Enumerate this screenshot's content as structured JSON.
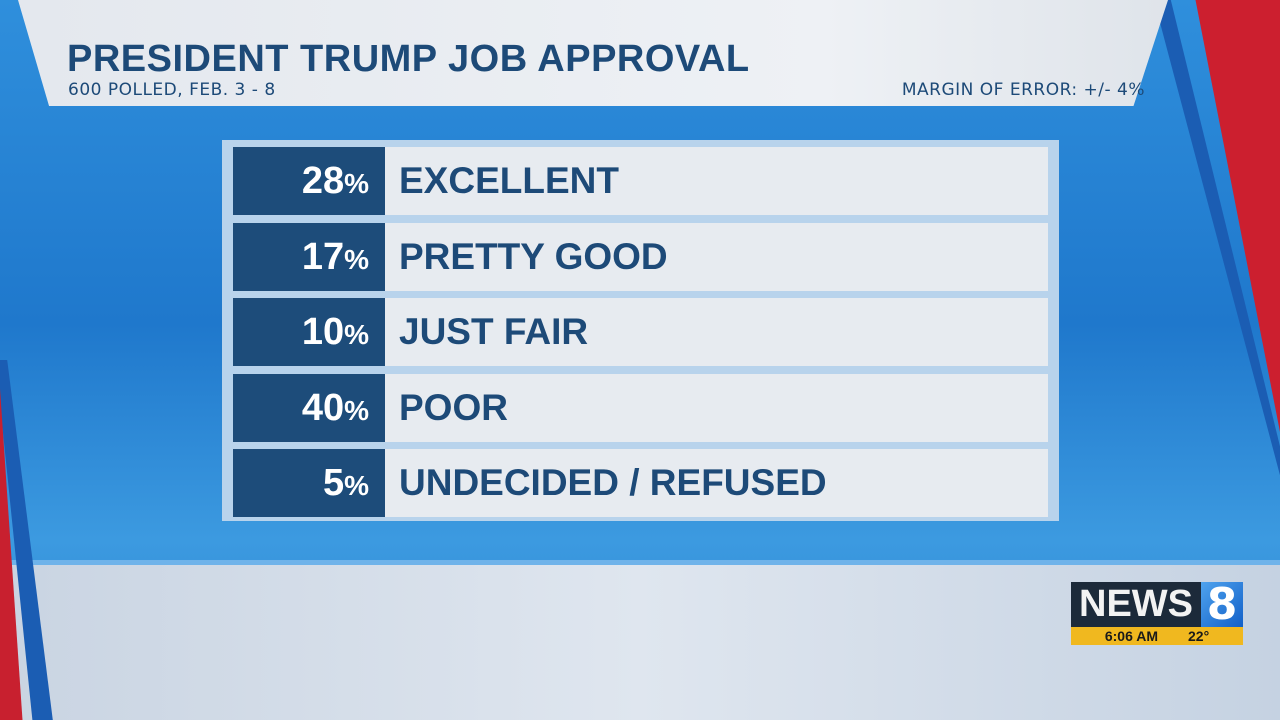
{
  "header": {
    "title": "PRESIDENT TRUMP JOB APPROVAL",
    "subtitle": "600 POLLED, FEB. 3 - 8",
    "margin": "MARGIN OF ERROR: +/- 4%"
  },
  "chart_data": {
    "type": "table",
    "title": "PRESIDENT TRUMP JOB APPROVAL",
    "subtitle": "600 POLLED, FEB. 3 - 8",
    "annotation": "MARGIN OF ERROR: +/- 4%",
    "rows": [
      {
        "value": "28",
        "unit": "%",
        "label": "EXCELLENT"
      },
      {
        "value": "17",
        "unit": "%",
        "label": "PRETTY GOOD"
      },
      {
        "value": "10",
        "unit": "%",
        "label": "JUST FAIR"
      },
      {
        "value": "40",
        "unit": "%",
        "label": "POOR"
      },
      {
        "value": "5",
        "unit": "%",
        "label": "UNDECIDED / REFUSED"
      }
    ]
  },
  "logo": {
    "text": "NEWS",
    "number": "8",
    "time": "6:06 AM",
    "temp": "22°"
  },
  "colors": {
    "navy": "#1d4c7a",
    "red": "#cc1f2f",
    "blue": "#2a8ad6",
    "gold": "#f0b81f"
  }
}
